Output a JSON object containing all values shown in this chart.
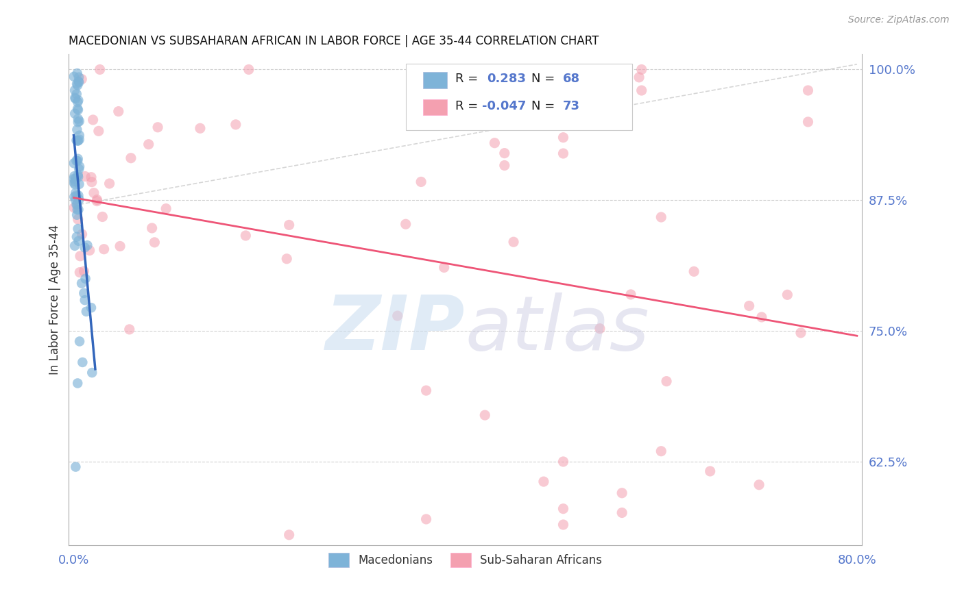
{
  "title": "MACEDONIAN VS SUBSAHARAN AFRICAN IN LABOR FORCE | AGE 35-44 CORRELATION CHART",
  "source": "Source: ZipAtlas.com",
  "ylabel": "In Labor Force | Age 35-44",
  "xlim": [
    -0.005,
    0.805
  ],
  "ylim": [
    0.545,
    1.015
  ],
  "xticks": [
    0.0,
    0.1,
    0.2,
    0.3,
    0.4,
    0.5,
    0.6,
    0.7,
    0.8
  ],
  "xticklabels": [
    "0.0%",
    "",
    "",
    "",
    "",
    "",
    "",
    "",
    "80.0%"
  ],
  "yticks_right": [
    0.625,
    0.75,
    0.875,
    1.0
  ],
  "yticklabels_right": [
    "62.5%",
    "75.0%",
    "87.5%",
    "100.0%"
  ],
  "blue_color": "#7EB3D8",
  "pink_color": "#F4A0B0",
  "blue_line_color": "#3366BB",
  "pink_line_color": "#EE5577",
  "diag_color": "#CCCCCC",
  "grid_color": "#CCCCCC",
  "tick_color": "#5577CC",
  "legend_text_blue": [
    "R = ",
    " 0.283 ",
    " N = ",
    "68"
  ],
  "legend_text_pink": [
    "R = ",
    "-0.047 ",
    " N = ",
    "73"
  ],
  "mac_seed": 12345,
  "sub_seed": 67890,
  "watermark_zip_color": "#C8DCF0",
  "watermark_atlas_color": "#C8C8E0"
}
